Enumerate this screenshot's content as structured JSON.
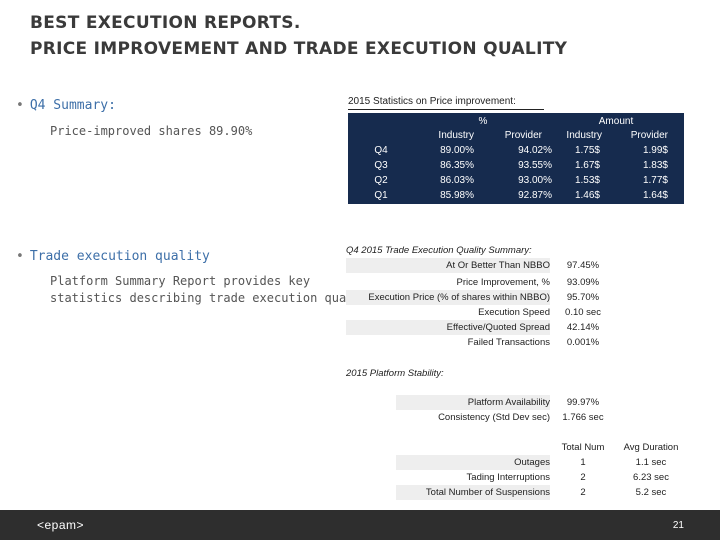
{
  "title": {
    "line1": "BEST EXECUTION REPORTS.",
    "line2": "PRICE IMPROVEMENT AND TRADE EXECUTION QUALITY"
  },
  "q4_summary": {
    "heading": "Q4 Summary:",
    "detail": "Price-improved shares 89.90%"
  },
  "trade_quality": {
    "heading": "Trade execution quality",
    "detail_1": "Platform Summary Report provides key",
    "detail_2": "statistics describing trade execution quality"
  },
  "price_improvement": {
    "caption": "2015 Statistics on Price improvement:",
    "group_pct": "%",
    "group_amount": "Amount",
    "col_industry": "Industry",
    "col_provider": "Provider",
    "rows": [
      {
        "label": "Q4",
        "pct_industry": "89.00%",
        "pct_provider": "94.02%",
        "amt_industry": "1.75$",
        "amt_provider": "1.99$"
      },
      {
        "label": "Q3",
        "pct_industry": "86.35%",
        "pct_provider": "93.55%",
        "amt_industry": "1.67$",
        "amt_provider": "1.83$"
      },
      {
        "label": "Q2",
        "pct_industry": "86.03%",
        "pct_provider": "93.00%",
        "amt_industry": "1.53$",
        "amt_provider": "1.77$"
      },
      {
        "label": "Q1",
        "pct_industry": "85.98%",
        "pct_provider": "92.87%",
        "amt_industry": "1.46$",
        "amt_provider": "1.64$"
      }
    ]
  },
  "execution_quality": {
    "caption": "Q4 2015 Trade Execution Quality Summary:",
    "rows": [
      {
        "label": "At Or Better Than NBBO",
        "value": "97.45%"
      },
      {
        "label": "Price Improvement, %",
        "value": "93.09%"
      },
      {
        "label": "Execution Price (% of shares within NBBO)",
        "value": "95.70%"
      },
      {
        "label": "Execution Speed",
        "value": "0.10 sec"
      },
      {
        "label": "Effective/Quoted Spread",
        "value": "42.14%"
      },
      {
        "label": "Failed Transactions",
        "value": "0.001%"
      }
    ]
  },
  "stability": {
    "caption": "2015 Platform Stability:",
    "rows": [
      {
        "label": "Platform Availability",
        "value": "99.97%"
      },
      {
        "label": "Consistency (Std Dev sec)",
        "value": "1.766 sec"
      }
    ],
    "col_total": "Total Num",
    "col_avg": "Avg Duration",
    "events": [
      {
        "label": "Outages",
        "total": "1",
        "avg": "1.1 sec"
      },
      {
        "label": "Tading Interruptions",
        "total": "2",
        "avg": "6.23 sec"
      },
      {
        "label": "Total Number of Suspensions",
        "total": "2",
        "avg": "5.2 sec"
      }
    ]
  },
  "footer": {
    "logo": "<epam>",
    "page": "21"
  }
}
